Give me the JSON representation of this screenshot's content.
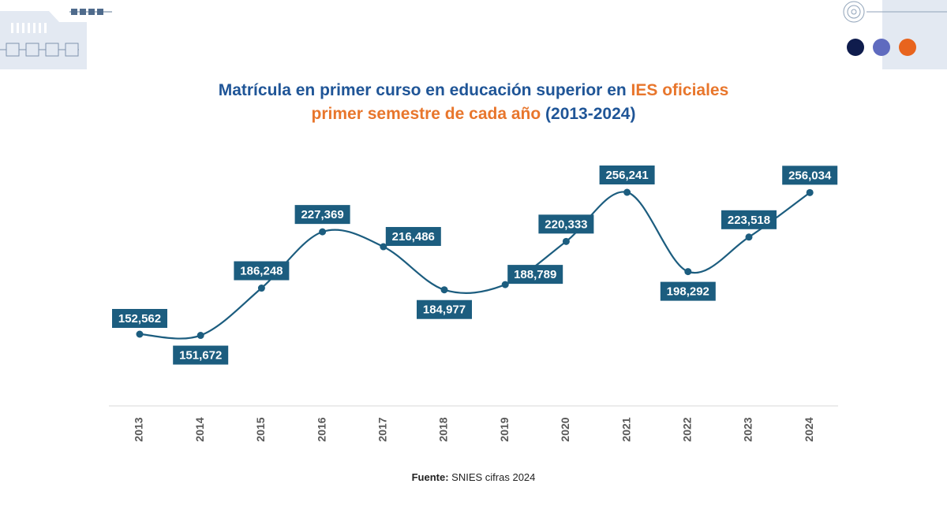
{
  "title": {
    "line1_part1": "Matrícula en primer curso en educación superior en ",
    "line1_part2": "IES oficiales",
    "line2_part1": "primer semestre de cada año",
    "line2_part2": " (2013-2024)"
  },
  "colors": {
    "title_blue": "#1f5597",
    "title_orange": "#e8762c",
    "series": "#1c5d7f",
    "label_bg": "#1c5d7f",
    "dot_navy": "#0f1c4d",
    "dot_purple": "#5f6bbf",
    "dot_orange": "#e8641e"
  },
  "chart_data": {
    "type": "line",
    "title": "Matrícula en primer curso en educación superior en IES oficiales primer semestre de cada año (2013-2024)",
    "xlabel": "",
    "ylabel": "",
    "ylim": [
      140000,
      265000
    ],
    "grid": false,
    "smooth": true,
    "categories": [
      "2013",
      "2014",
      "2015",
      "2016",
      "2017",
      "2018",
      "2019",
      "2020",
      "2021",
      "2022",
      "2023",
      "2024"
    ],
    "values": [
      152562,
      151672,
      186248,
      227369,
      216486,
      184977,
      188789,
      220333,
      256241,
      198292,
      223518,
      256034
    ],
    "labels": [
      "152,562",
      "151,672",
      "186,248",
      "227,369",
      "216,486",
      "184,977",
      "188,789",
      "220,333",
      "256,241",
      "198,292",
      "223,518",
      "256,034"
    ],
    "label_positions": [
      "above",
      "below",
      "above",
      "above",
      "right",
      "below",
      "right",
      "above",
      "above",
      "below",
      "above",
      "above"
    ]
  },
  "source": {
    "label": "Fuente:",
    "text": " SNIES cifras 2024"
  }
}
